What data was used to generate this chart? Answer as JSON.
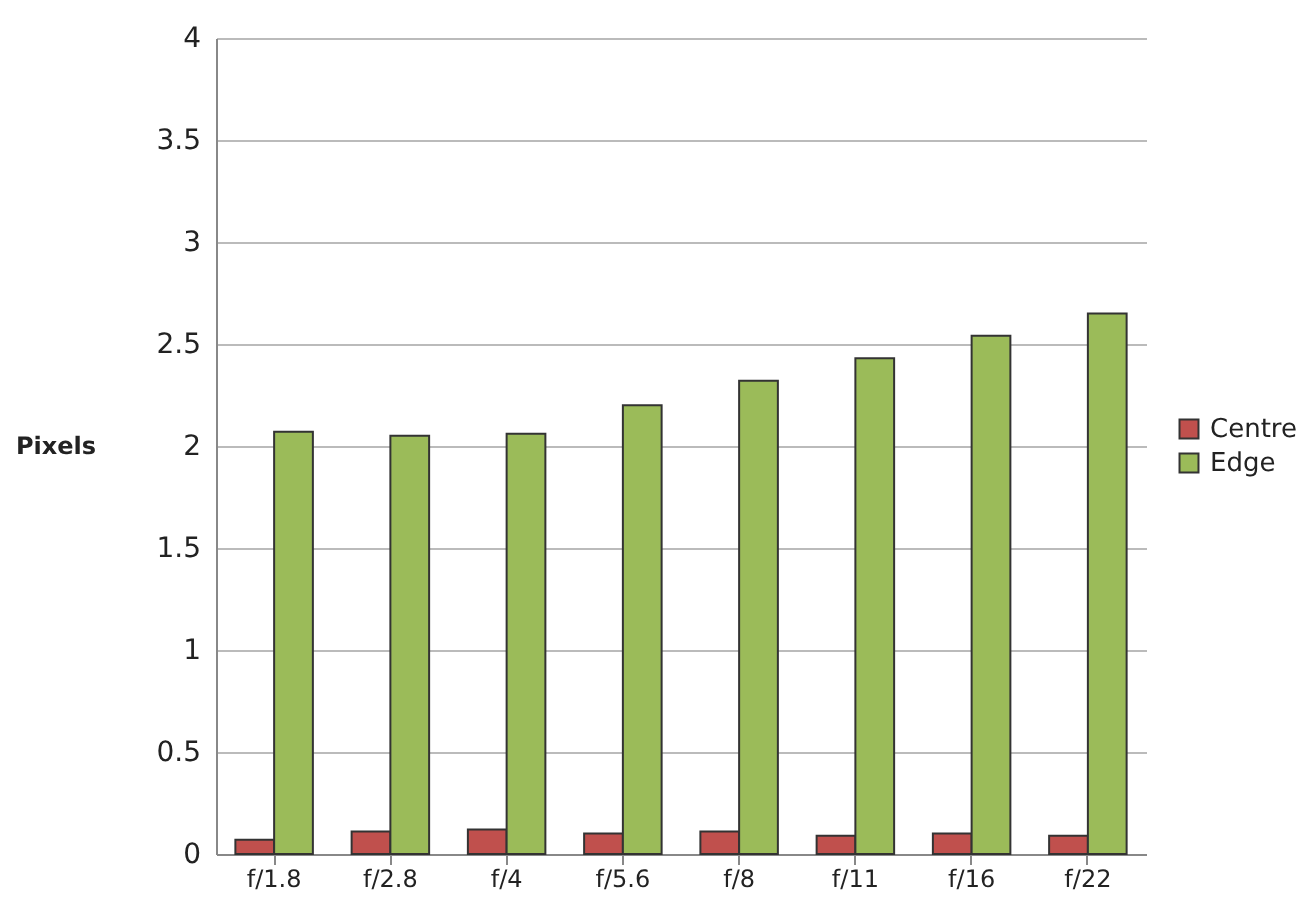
{
  "chart_data": {
    "type": "bar",
    "ylabel": "Pixels",
    "categories": [
      "f/1.8",
      "f/2.8",
      "f/4",
      "f/5.6",
      "f/8",
      "f/11",
      "f/16",
      "f/22"
    ],
    "series": [
      {
        "name": "Centre",
        "color": "#c0504d",
        "values": [
          0.07,
          0.11,
          0.12,
          0.1,
          0.11,
          0.09,
          0.1,
          0.09
        ]
      },
      {
        "name": "Edge",
        "color": "#9bbb59",
        "values": [
          2.07,
          2.05,
          2.06,
          2.2,
          2.32,
          2.43,
          2.54,
          2.65
        ]
      }
    ],
    "ylim": [
      0,
      4
    ],
    "yticks": [
      0,
      0.5,
      1,
      1.5,
      2,
      2.5,
      3,
      3.5,
      4
    ],
    "grid": "y",
    "legend": "right"
  }
}
